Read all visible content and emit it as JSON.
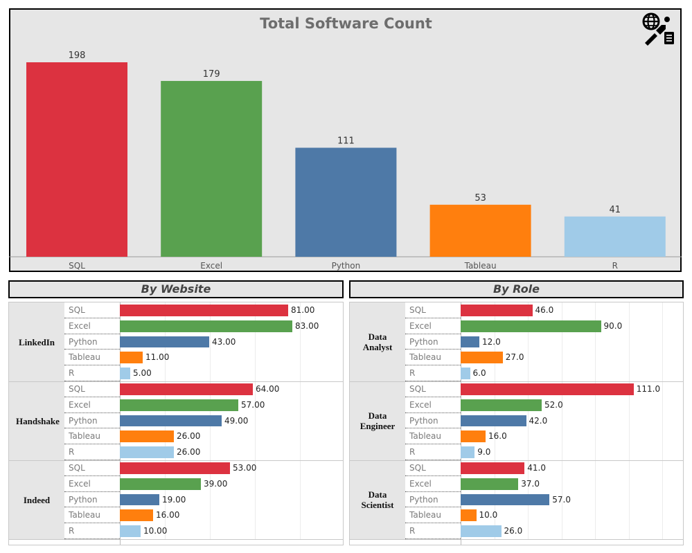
{
  "header": {
    "title": "Total Software Count"
  },
  "colors": {
    "SQL": "#dc3240",
    "Excel": "#59a14f",
    "Python": "#4e79a7",
    "Tableau": "#ff7f0e",
    "R": "#a0cbe8"
  },
  "chart_data": [
    {
      "type": "bar",
      "title": "Total Software Count",
      "categories": [
        "SQL",
        "Excel",
        "Python",
        "Tableau",
        "R"
      ],
      "values": [
        198,
        179,
        111,
        53,
        41
      ],
      "value_labels": [
        "198",
        "179",
        "111",
        "53",
        "41"
      ],
      "ylim": [
        0,
        210
      ]
    },
    {
      "type": "bar",
      "orientation": "horizontal",
      "title": "By Website",
      "groups": [
        {
          "name": "LinkedIn",
          "categories": [
            "SQL",
            "Excel",
            "Python",
            "Tableau",
            "R"
          ],
          "values": [
            81,
            83,
            43,
            11,
            5
          ],
          "value_labels": [
            "81.00",
            "83.00",
            "43.00",
            "11.00",
            "5.00"
          ]
        },
        {
          "name": "Handshake",
          "categories": [
            "SQL",
            "Excel",
            "Python",
            "Tableau",
            "R"
          ],
          "values": [
            64,
            57,
            49,
            26,
            26
          ],
          "value_labels": [
            "64.00",
            "57.00",
            "49.00",
            "26.00",
            "26.00"
          ]
        },
        {
          "name": "Indeed",
          "categories": [
            "SQL",
            "Excel",
            "Python",
            "Tableau",
            "R"
          ],
          "values": [
            53,
            39,
            19,
            16,
            10
          ],
          "value_labels": [
            "53.00",
            "39.00",
            "19.00",
            "16.00",
            "10.00"
          ]
        }
      ],
      "xlim": [
        0,
        90
      ]
    },
    {
      "type": "bar",
      "orientation": "horizontal",
      "title": "By Role",
      "groups": [
        {
          "name": "Data Analyst",
          "categories": [
            "SQL",
            "Excel",
            "Python",
            "Tableau",
            "R"
          ],
          "values": [
            46,
            90,
            12,
            27,
            6
          ],
          "value_labels": [
            "46.0",
            "90.0",
            "12.0",
            "27.0",
            "6.0"
          ]
        },
        {
          "name": "Data Engineer",
          "categories": [
            "SQL",
            "Excel",
            "Python",
            "Tableau",
            "R"
          ],
          "values": [
            111,
            52,
            42,
            16,
            9
          ],
          "value_labels": [
            "111.0",
            "52.0",
            "42.0",
            "16.0",
            "9.0"
          ]
        },
        {
          "name": "Data Scientist",
          "categories": [
            "SQL",
            "Excel",
            "Python",
            "Tableau",
            "R"
          ],
          "values": [
            41,
            37,
            57,
            10,
            26
          ],
          "value_labels": [
            "41.0",
            "37.0",
            "57.0",
            "10.0",
            "26.0"
          ]
        }
      ],
      "xlim": [
        0,
        120
      ]
    }
  ]
}
